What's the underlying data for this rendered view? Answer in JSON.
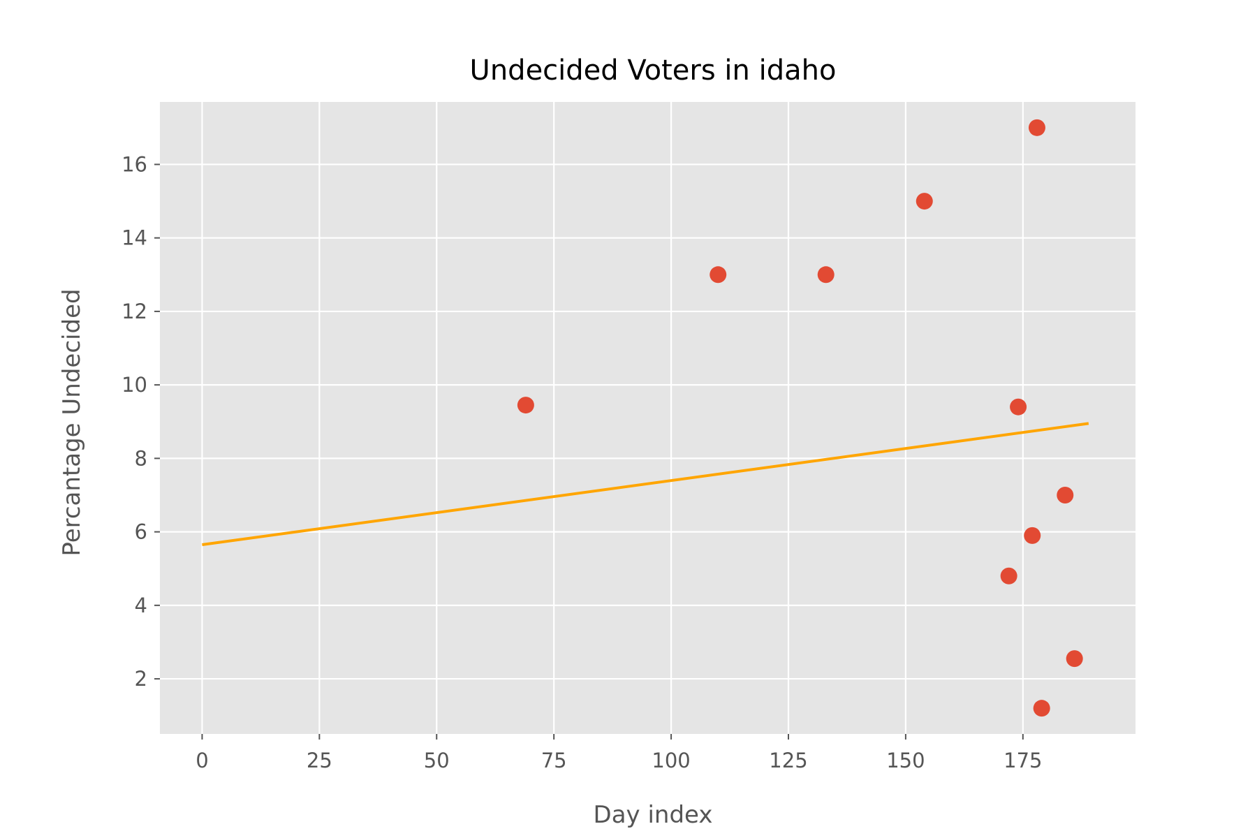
{
  "chart_data": {
    "type": "scatter",
    "title": "Undecided Voters in idaho",
    "xlabel": "Day index",
    "ylabel": "Percantage Undecided",
    "xlim": [
      -9,
      199
    ],
    "ylim": [
      0.5,
      17.7
    ],
    "xticks": [
      0,
      25,
      50,
      75,
      100,
      125,
      150,
      175
    ],
    "yticks": [
      2,
      4,
      6,
      8,
      10,
      12,
      14,
      16
    ],
    "grid": true,
    "background": "#E5E5E5",
    "colors": {
      "points": "#E24A33",
      "trend": "#FFA500",
      "grid": "#FFFFFF",
      "text": "#555555"
    },
    "points": [
      {
        "x": 69,
        "y": 9.45
      },
      {
        "x": 110,
        "y": 13.0
      },
      {
        "x": 133,
        "y": 13.0
      },
      {
        "x": 154,
        "y": 15.0
      },
      {
        "x": 172,
        "y": 4.8
      },
      {
        "x": 174,
        "y": 9.4
      },
      {
        "x": 177,
        "y": 5.9
      },
      {
        "x": 178,
        "y": 17.0
      },
      {
        "x": 179,
        "y": 1.2
      },
      {
        "x": 184,
        "y": 7.0
      },
      {
        "x": 186,
        "y": 2.55
      }
    ],
    "trend_line": [
      {
        "x": 0,
        "y": 5.65
      },
      {
        "x": 189,
        "y": 8.95
      }
    ]
  }
}
